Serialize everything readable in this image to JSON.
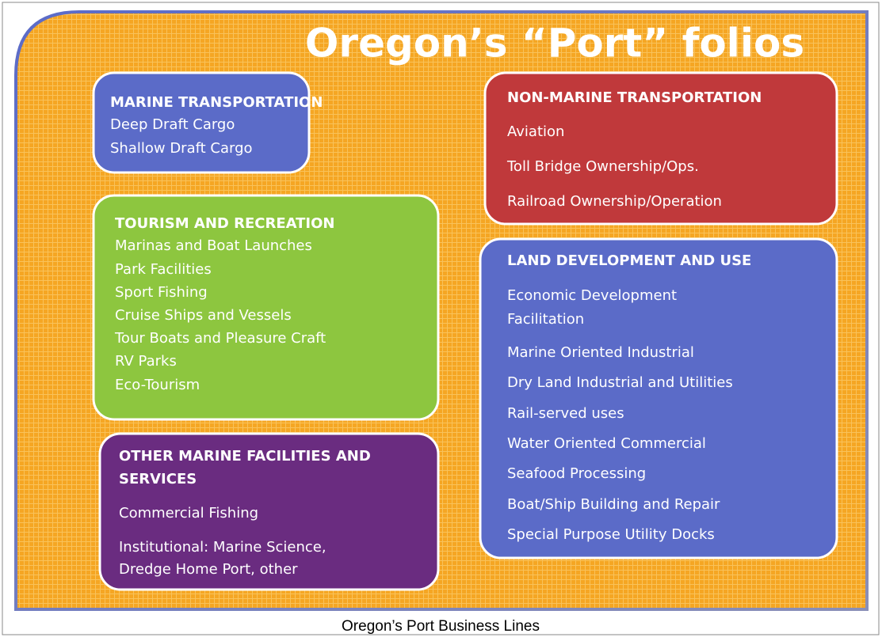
{
  "title": "Oregon’s “Port” folios",
  "caption": "Oregon’s Port Business Lines",
  "boxes": [
    {
      "heading": [
        "MARINE TRANSPORTATION"
      ],
      "items": [
        "Deep Draft Cargo",
        "Shallow Draft Cargo"
      ]
    },
    {
      "heading": [
        "NON-MARINE TRANSPORTATION"
      ],
      "items": [
        "Aviation",
        "Toll Bridge Ownership/Ops.",
        "Railroad Ownership/Operation"
      ]
    },
    {
      "heading": [
        "TOURISM AND RECREATION"
      ],
      "items": [
        "Marinas and Boat Launches",
        "Park Facilities",
        "Sport Fishing",
        "Cruise Ships and Vessels",
        "Tour Boats and Pleasure Craft",
        "RV Parks",
        "Eco-Tourism"
      ]
    },
    {
      "heading": [
        "LAND DEVELOPMENT AND USE"
      ],
      "items": [
        "Economic Development",
        "Facilitation",
        "Marine Oriented Industrial",
        "Dry Land Industrial and Utilities",
        "Rail-served uses",
        "Water Oriented Commercial",
        "Seafood Processing",
        "Boat/Ship Building and Repair",
        "Special Purpose Utility Docks"
      ]
    },
    {
      "heading": [
        "OTHER MARINE FACILITIES AND",
        "SERVICES"
      ],
      "items": [
        "Commercial Fishing",
        "Institutional: Marine Science,",
        "Dredge Home Port, other"
      ]
    }
  ]
}
